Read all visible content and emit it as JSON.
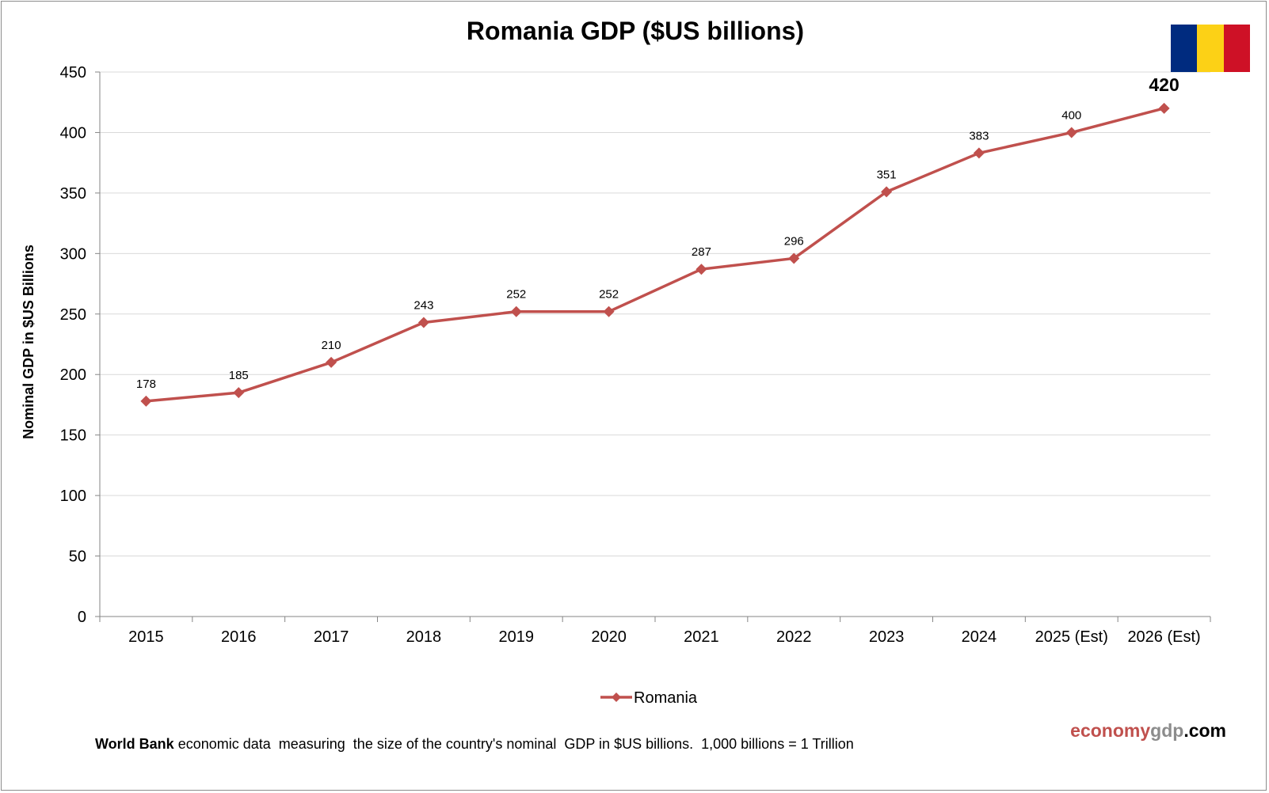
{
  "chart_data": {
    "type": "line",
    "title": "Romania GDP ($US billions)",
    "ylabel": "Nominal GDP in $US Billions",
    "xlabel": "",
    "categories": [
      "2015",
      "2016",
      "2017",
      "2018",
      "2019",
      "2020",
      "2021",
      "2022",
      "2023",
      "2024",
      "2025 (Est)",
      "2026 (Est)"
    ],
    "series": [
      {
        "name": "Romania",
        "values": [
          178,
          185,
          210,
          243,
          252,
          252,
          287,
          296,
          351,
          383,
          400,
          420
        ],
        "color": "#c0504d",
        "marker": "diamond"
      }
    ],
    "ylim": [
      0,
      450
    ],
    "yticks": [
      0,
      50,
      100,
      150,
      200,
      250,
      300,
      350,
      400,
      450
    ],
    "grid": true,
    "legend_position": "bottom",
    "data_labels": true,
    "highlighted_label": "420"
  },
  "footnote": {
    "bold": "World Bank",
    "text": " economic data  measuring  the size of the country's nominal  GDP in $US billions.  1,000 billions = 1 Trillion"
  },
  "brand": {
    "part1": "economy",
    "part2": "gdp",
    "part3": ".com",
    "color1": "#c0504d",
    "color2": "#8c8c8c",
    "color3": "#000000"
  },
  "flag": {
    "colors": [
      "#002b7f",
      "#fcd116",
      "#ce1126"
    ]
  }
}
